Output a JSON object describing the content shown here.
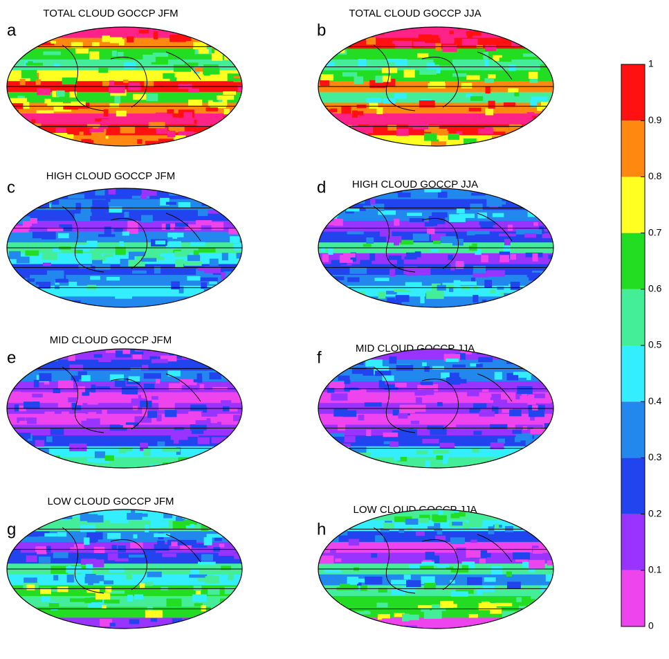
{
  "panels": [
    {
      "letter": "a",
      "title": "TOTAL CLOUD GOCCP JFM"
    },
    {
      "letter": "b",
      "title": "TOTAL CLOUD GOCCP JJA"
    },
    {
      "letter": "c",
      "title": "HIGH CLOUD GOCCP JFM"
    },
    {
      "letter": "d",
      "title": "HIGH CLOUD GOCCP JJA"
    },
    {
      "letter": "e",
      "title": "MID CLOUD GOCCP JFM"
    },
    {
      "letter": "f",
      "title": "MID CLOUD GOCCP JJA"
    },
    {
      "letter": "g",
      "title": "LOW CLOUD GOCCP JFM"
    },
    {
      "letter": "h",
      "title": "LOW CLOUD GOCCP JJA"
    }
  ],
  "colorbar": {
    "ticks": [
      0,
      0.1,
      0.2,
      0.3,
      0.4,
      0.5,
      0.6,
      0.7,
      0.8,
      0.9,
      1
    ],
    "colors": [
      "#ee44ee",
      "#9933ff",
      "#2244ee",
      "#2288ee",
      "#33eeff",
      "#44ee99",
      "#22dd22",
      "#ffff22",
      "#ff8811",
      "#ff1111",
      "#ff2288"
    ]
  }
}
